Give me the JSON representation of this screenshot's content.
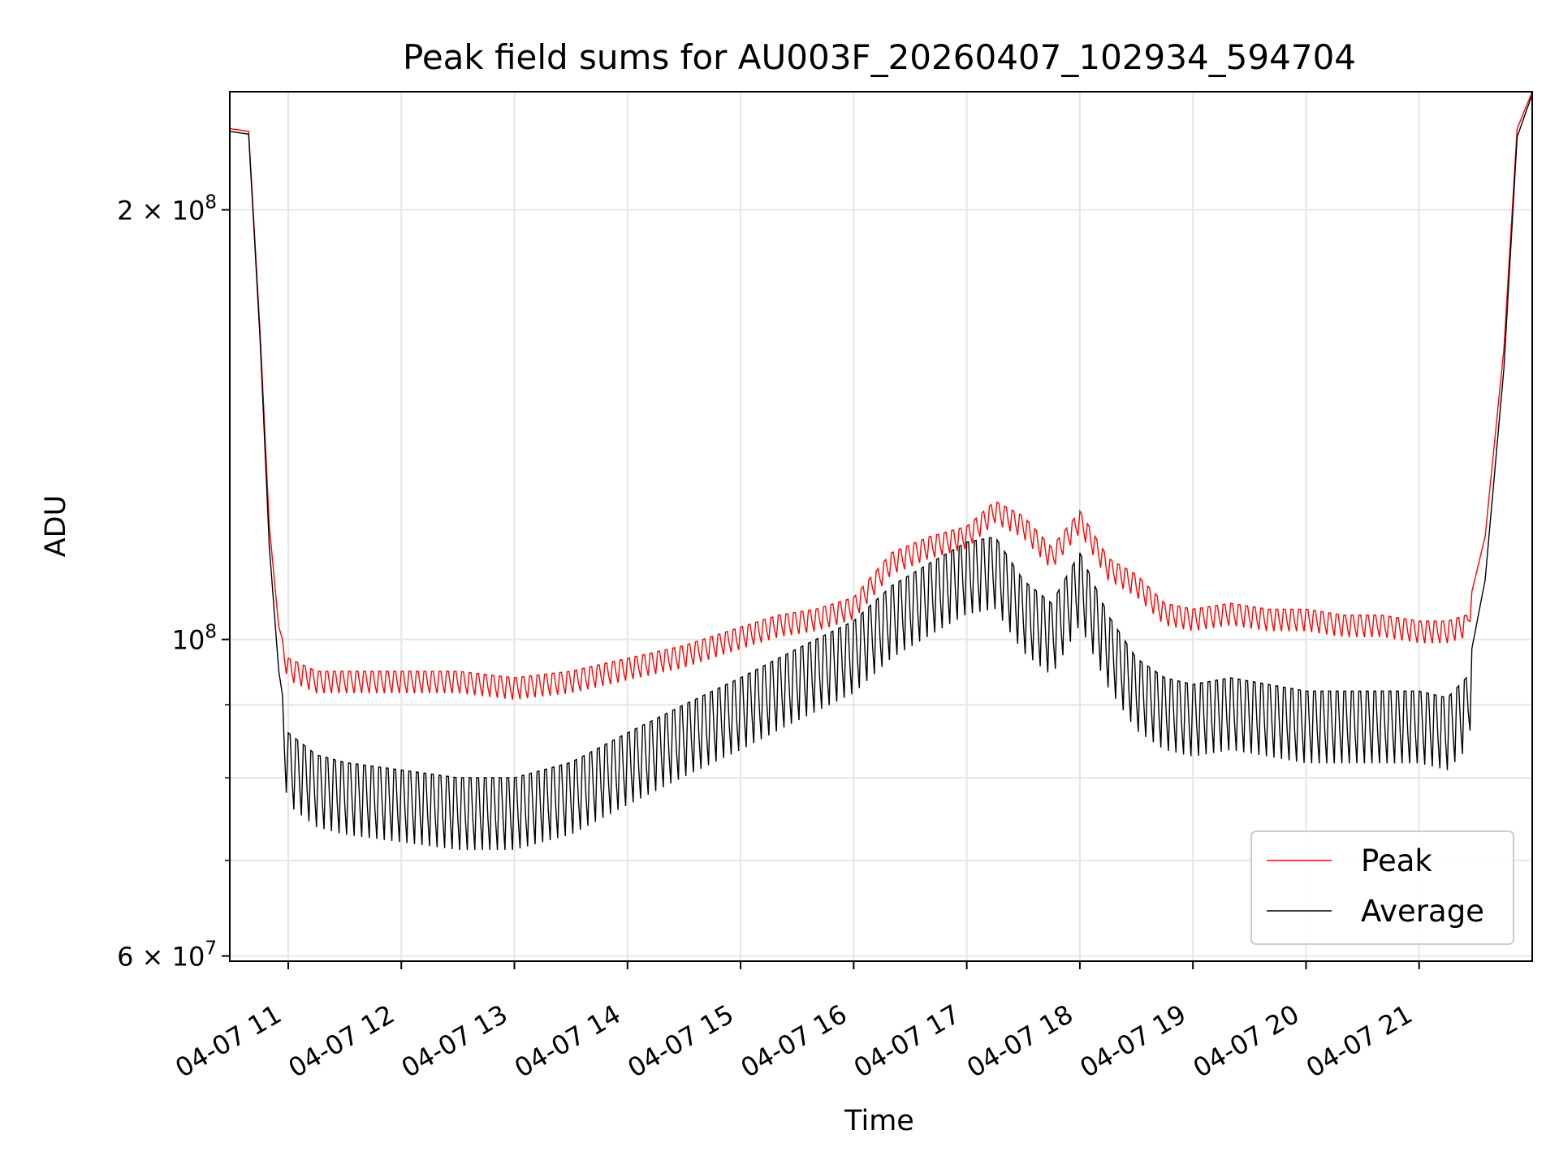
{
  "chart_data": {
    "type": "line",
    "title": "Peak field sums for AU003F_20260407_102934_594704",
    "xlabel": "Time",
    "ylabel": "ADU",
    "yscale": "log",
    "xlim": [
      "2026-04-07T10:29",
      "2026-04-07T22:00"
    ],
    "ylim": [
      59500000,
      242000000
    ],
    "grid": true,
    "legend_position": "lower right",
    "x_ticks": [
      {
        "value": "2026-04-07T11:00",
        "label": "04-07 11"
      },
      {
        "value": "2026-04-07T12:00",
        "label": "04-07 12"
      },
      {
        "value": "2026-04-07T13:00",
        "label": "04-07 13"
      },
      {
        "value": "2026-04-07T14:00",
        "label": "04-07 14"
      },
      {
        "value": "2026-04-07T15:00",
        "label": "04-07 15"
      },
      {
        "value": "2026-04-07T16:00",
        "label": "04-07 16"
      },
      {
        "value": "2026-04-07T17:00",
        "label": "04-07 17"
      },
      {
        "value": "2026-04-07T18:00",
        "label": "04-07 18"
      },
      {
        "value": "2026-04-07T19:00",
        "label": "04-07 19"
      },
      {
        "value": "2026-04-07T20:00",
        "label": "04-07 20"
      },
      {
        "value": "2026-04-07T21:00",
        "label": "04-07 21"
      }
    ],
    "y_major_ticks": [
      {
        "value": 60000000,
        "mantissa": "6",
        "base": "10",
        "exponent": "7"
      },
      {
        "value": 100000000,
        "mantissa": "",
        "base": "10",
        "exponent": "8"
      },
      {
        "value": 200000000,
        "mantissa": "2",
        "base": "10",
        "exponent": "8"
      }
    ],
    "y_minor_ticks": [
      70000000,
      80000000,
      90000000
    ],
    "series": [
      {
        "name": "Peak",
        "color": "#ff0000",
        "x": [
          "2026-04-07T10:29",
          "2026-04-07T10:39",
          "2026-04-07T10:45",
          "2026-04-07T10:50",
          "2026-04-07T10:55",
          "2026-04-07T11:00",
          "2026-04-07T11:15",
          "2026-04-07T11:30",
          "2026-04-07T12:00",
          "2026-04-07T12:30",
          "2026-04-07T13:00",
          "2026-04-07T13:30",
          "2026-04-07T14:00",
          "2026-04-07T14:30",
          "2026-04-07T15:00",
          "2026-04-07T15:20",
          "2026-04-07T15:40",
          "2026-04-07T16:00",
          "2026-04-07T16:20",
          "2026-04-07T16:40",
          "2026-04-07T17:00",
          "2026-04-07T17:15",
          "2026-04-07T17:30",
          "2026-04-07T17:45",
          "2026-04-07T18:00",
          "2026-04-07T18:15",
          "2026-04-07T18:30",
          "2026-04-07T18:45",
          "2026-04-07T19:00",
          "2026-04-07T19:20",
          "2026-04-07T19:40",
          "2026-04-07T20:00",
          "2026-04-07T20:20",
          "2026-04-07T20:40",
          "2026-04-07T21:00",
          "2026-04-07T21:15",
          "2026-04-07T21:25",
          "2026-04-07T21:35",
          "2026-04-07T21:45",
          "2026-04-07T21:52",
          "2026-04-07T22:00"
        ],
        "y": [
          228000000,
          227000000,
          165000000,
          120000000,
          102000000,
          97000000,
          95000000,
          95000000,
          95000000,
          95000000,
          94000000,
          95000000,
          97000000,
          99000000,
          102000000,
          104000000,
          105000000,
          107000000,
          115000000,
          118000000,
          120000000,
          125000000,
          122000000,
          116000000,
          123000000,
          114000000,
          111000000,
          106000000,
          105000000,
          106000000,
          105000000,
          105000000,
          104000000,
          104000000,
          103000000,
          103000000,
          104000000,
          118000000,
          160000000,
          228000000,
          242000000
        ]
      },
      {
        "name": "Average",
        "color": "#000000",
        "x": [
          "2026-04-07T10:29",
          "2026-04-07T10:39",
          "2026-04-07T10:45",
          "2026-04-07T10:50",
          "2026-04-07T10:55",
          "2026-04-07T11:00",
          "2026-04-07T11:15",
          "2026-04-07T11:30",
          "2026-04-07T12:00",
          "2026-04-07T12:30",
          "2026-04-07T13:00",
          "2026-04-07T13:30",
          "2026-04-07T14:00",
          "2026-04-07T14:30",
          "2026-04-07T15:00",
          "2026-04-07T15:20",
          "2026-04-07T15:40",
          "2026-04-07T16:00",
          "2026-04-07T16:20",
          "2026-04-07T16:40",
          "2026-04-07T17:00",
          "2026-04-07T17:15",
          "2026-04-07T17:30",
          "2026-04-07T17:45",
          "2026-04-07T18:00",
          "2026-04-07T18:15",
          "2026-04-07T18:30",
          "2026-04-07T18:45",
          "2026-04-07T19:00",
          "2026-04-07T19:20",
          "2026-04-07T19:40",
          "2026-04-07T20:00",
          "2026-04-07T20:20",
          "2026-04-07T20:40",
          "2026-04-07T21:00",
          "2026-04-07T21:15",
          "2026-04-07T21:25",
          "2026-04-07T21:35",
          "2026-04-07T21:45",
          "2026-04-07T21:52",
          "2026-04-07T22:00"
        ],
        "y": [
          227000000,
          226000000,
          163000000,
          116000000,
          95000000,
          86000000,
          83000000,
          82000000,
          81000000,
          80000000,
          80000000,
          82000000,
          86000000,
          90000000,
          94000000,
          97000000,
          100000000,
          103000000,
          109000000,
          113000000,
          117000000,
          118000000,
          110000000,
          106000000,
          115000000,
          104000000,
          97000000,
          94000000,
          93000000,
          94000000,
          93000000,
          92000000,
          92000000,
          92000000,
          92000000,
          91000000,
          94000000,
          110000000,
          155000000,
          225000000,
          241000000
        ]
      }
    ]
  }
}
